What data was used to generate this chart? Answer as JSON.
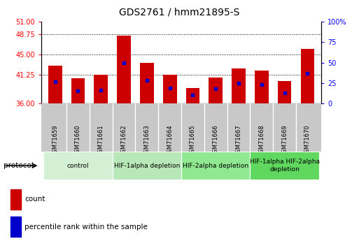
{
  "title": "GDS2761 / hmm21895-S",
  "samples": [
    "GSM71659",
    "GSM71660",
    "GSM71661",
    "GSM71662",
    "GSM71663",
    "GSM71664",
    "GSM71665",
    "GSM71666",
    "GSM71667",
    "GSM71668",
    "GSM71669",
    "GSM71670"
  ],
  "bar_tops": [
    43.0,
    40.6,
    41.25,
    48.5,
    43.5,
    41.25,
    38.8,
    40.8,
    42.5,
    42.0,
    40.2,
    46.0
  ],
  "blue_positions": [
    40.0,
    38.3,
    38.5,
    43.5,
    40.3,
    38.8,
    37.6,
    38.7,
    39.8,
    39.5,
    38.0,
    41.5
  ],
  "baseline": 36,
  "ylim_left": [
    36,
    51
  ],
  "yticks_left": [
    36,
    41.25,
    45,
    48.75,
    51
  ],
  "ylim_right": [
    0,
    100
  ],
  "yticks_right": [
    0,
    25,
    50,
    75,
    100
  ],
  "bar_color": "#cc0000",
  "blue_color": "#0000cc",
  "bar_width": 0.6,
  "bg_color": "#ffffff",
  "col_bg_color": "#c8c8c8",
  "protocol_groups": [
    {
      "label": "control",
      "start": 0,
      "end": 2,
      "color": "#d4f0d4"
    },
    {
      "label": "HIF-1alpha depletion",
      "start": 3,
      "end": 5,
      "color": "#b8e8b8"
    },
    {
      "label": "HIF-2alpha depletion",
      "start": 6,
      "end": 8,
      "color": "#90e890"
    },
    {
      "label": "HIF-1alpha HIF-2alpha\ndepletion",
      "start": 9,
      "end": 11,
      "color": "#60d860"
    }
  ]
}
